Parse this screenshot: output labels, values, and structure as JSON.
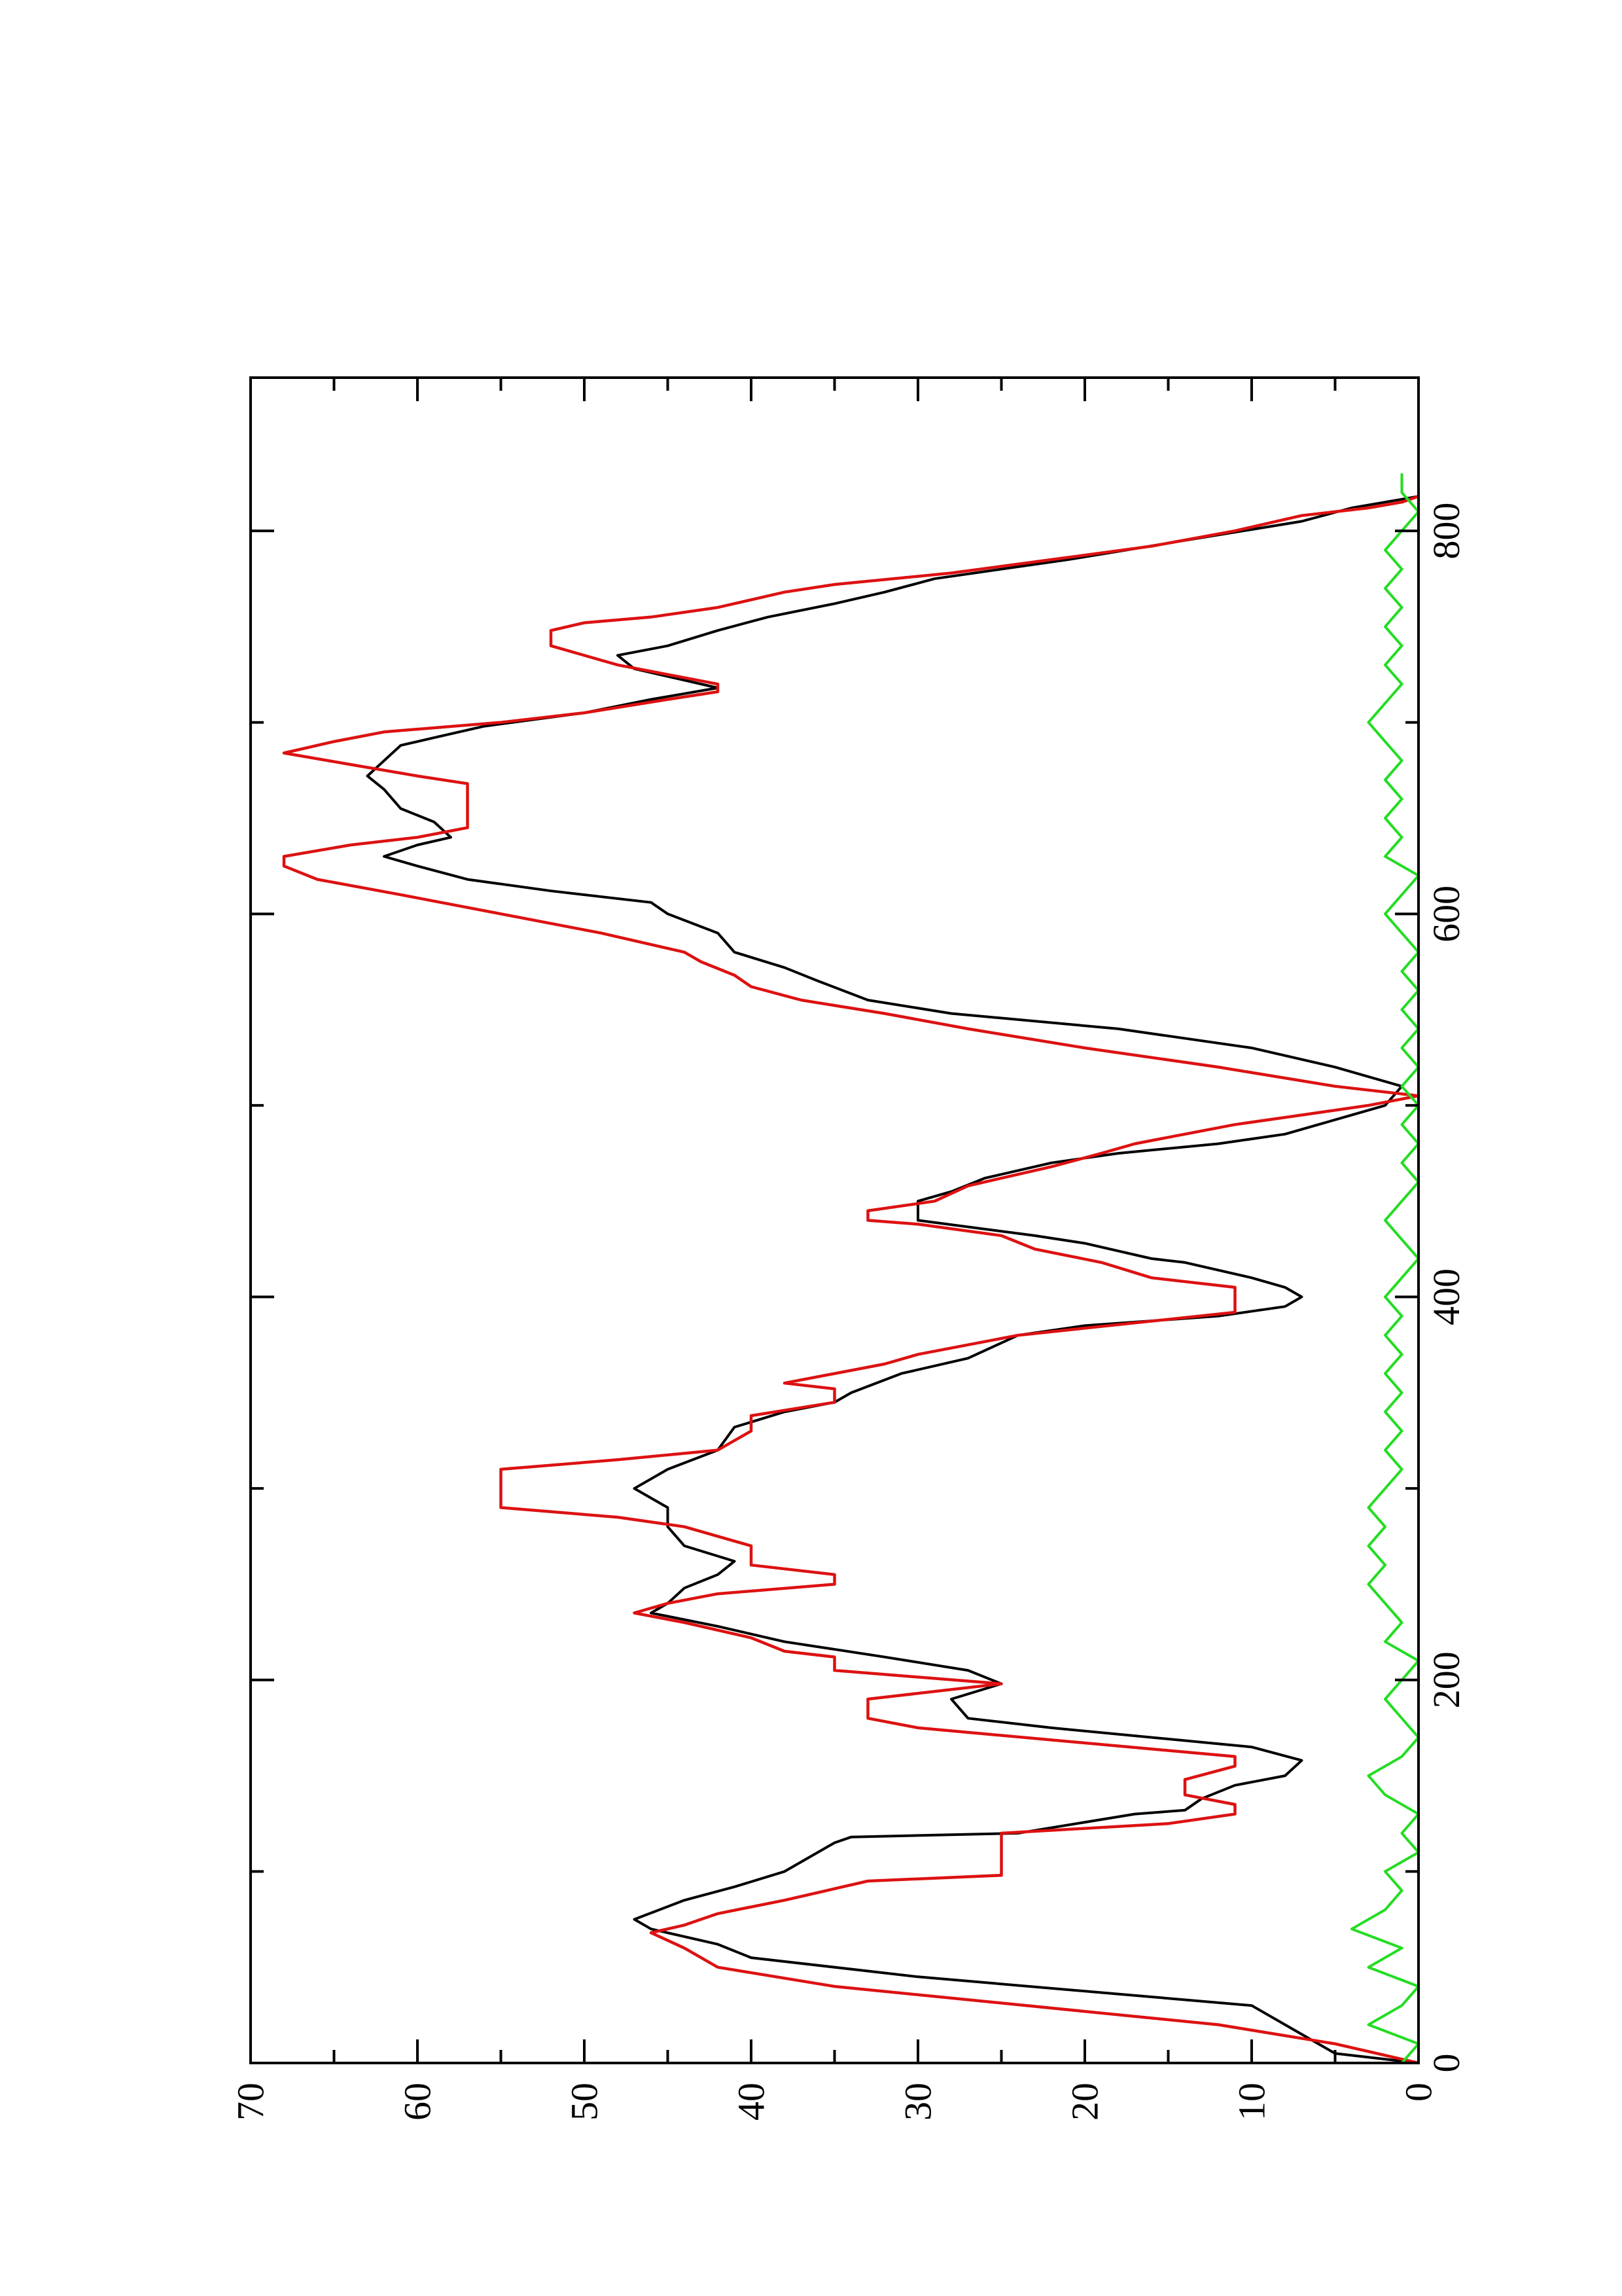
{
  "chart_data": {
    "type": "line",
    "title": "",
    "xlabel": "",
    "ylabel": "",
    "xlim": [
      0,
      880
    ],
    "ylim": [
      0,
      70
    ],
    "x_major_ticks": [
      0,
      200,
      400,
      600,
      800
    ],
    "x_minor_ticks": [
      100,
      300,
      500,
      700
    ],
    "y_major_ticks": [
      0,
      10,
      20,
      30,
      40,
      50,
      60,
      70
    ],
    "y_minor_ticks": [
      5,
      15,
      25,
      35,
      45,
      55,
      65
    ],
    "x_tick_labels": [
      "0",
      "200",
      "400",
      "600",
      "800"
    ],
    "y_tick_labels": [
      "0",
      "10",
      "20",
      "30",
      "40",
      "50",
      "60",
      "70"
    ],
    "grid": false,
    "legend": "none",
    "orientation": "rotated 90 degrees counter-clockwise (landscape plot on portrait page)",
    "series": [
      {
        "color": "#000000",
        "style": "smooth line",
        "points": [
          [
            0,
            0
          ],
          [
            5,
            5
          ],
          [
            15,
            7
          ],
          [
            30,
            10
          ],
          [
            45,
            30
          ],
          [
            55,
            40
          ],
          [
            62,
            42
          ],
          [
            70,
            46
          ],
          [
            75,
            47
          ],
          [
            85,
            44
          ],
          [
            92,
            41
          ],
          [
            100,
            38
          ],
          [
            115,
            35
          ],
          [
            118,
            34
          ],
          [
            120,
            24
          ],
          [
            130,
            17
          ],
          [
            132,
            14
          ],
          [
            138,
            13
          ],
          [
            145,
            11
          ],
          [
            150,
            8
          ],
          [
            158,
            7
          ],
          [
            165,
            10
          ],
          [
            175,
            22
          ],
          [
            180,
            27
          ],
          [
            190,
            28
          ],
          [
            198,
            25
          ],
          [
            205,
            27
          ],
          [
            212,
            32
          ],
          [
            220,
            38
          ],
          [
            228,
            42
          ],
          [
            235,
            46
          ],
          [
            240,
            45
          ],
          [
            248,
            44
          ],
          [
            255,
            42
          ],
          [
            262,
            41
          ],
          [
            270,
            44
          ],
          [
            280,
            45
          ],
          [
            290,
            45
          ],
          [
            300,
            47
          ],
          [
            310,
            45
          ],
          [
            320,
            42
          ],
          [
            332,
            41
          ],
          [
            340,
            38
          ],
          [
            345,
            35
          ],
          [
            350,
            34
          ],
          [
            360,
            31
          ],
          [
            368,
            27
          ],
          [
            380,
            24
          ],
          [
            385,
            20
          ],
          [
            390,
            12
          ],
          [
            395,
            8
          ],
          [
            400,
            7
          ],
          [
            405,
            8
          ],
          [
            410,
            10
          ],
          [
            418,
            14
          ],
          [
            420,
            16
          ],
          [
            428,
            20
          ],
          [
            432,
            23
          ],
          [
            440,
            30
          ],
          [
            450,
            30
          ],
          [
            455,
            28
          ],
          [
            462,
            26
          ],
          [
            470,
            22
          ],
          [
            475,
            18
          ],
          [
            480,
            12
          ],
          [
            485,
            8
          ],
          [
            490,
            6
          ],
          [
            495,
            4
          ],
          [
            500,
            2
          ],
          [
            510,
            1
          ],
          [
            520,
            5
          ],
          [
            530,
            10
          ],
          [
            540,
            18
          ],
          [
            548,
            28
          ],
          [
            555,
            33
          ],
          [
            565,
            36
          ],
          [
            572,
            38
          ],
          [
            580,
            41
          ],
          [
            590,
            42
          ],
          [
            600,
            45
          ],
          [
            606,
            46
          ],
          [
            612,
            52
          ],
          [
            618,
            57
          ],
          [
            625,
            60
          ],
          [
            630,
            62
          ],
          [
            636,
            60
          ],
          [
            640,
            58
          ],
          [
            648,
            59
          ],
          [
            655,
            61
          ],
          [
            665,
            62
          ],
          [
            672,
            63
          ],
          [
            680,
            62
          ],
          [
            688,
            61
          ],
          [
            692,
            59
          ],
          [
            698,
            56
          ],
          [
            705,
            50
          ],
          [
            712,
            46
          ],
          [
            718,
            42
          ],
          [
            722,
            44
          ],
          [
            728,
            47
          ],
          [
            735,
            48
          ],
          [
            740,
            45
          ],
          [
            748,
            42
          ],
          [
            755,
            39
          ],
          [
            762,
            35
          ],
          [
            768,
            32
          ],
          [
            775,
            29
          ],
          [
            785,
            21
          ],
          [
            795,
            14
          ],
          [
            805,
            7
          ],
          [
            812,
            4
          ],
          [
            815,
            2
          ],
          [
            818,
            0
          ]
        ]
      },
      {
        "color": "#dd1111",
        "style": "stepped line",
        "points": [
          [
            0,
            0
          ],
          [
            10,
            5
          ],
          [
            20,
            12
          ],
          [
            40,
            35
          ],
          [
            50,
            42
          ],
          [
            60,
            44
          ],
          [
            68,
            46
          ],
          [
            72,
            44
          ],
          [
            78,
            42
          ],
          [
            85,
            38
          ],
          [
            95,
            33
          ],
          [
            98,
            25
          ],
          [
            120,
            25
          ],
          [
            125,
            15
          ],
          [
            130,
            11
          ],
          [
            135,
            11
          ],
          [
            140,
            14
          ],
          [
            148,
            14
          ],
          [
            155,
            11
          ],
          [
            160,
            11
          ],
          [
            175,
            30
          ],
          [
            180,
            33
          ],
          [
            190,
            33
          ],
          [
            198,
            25
          ],
          [
            205,
            35
          ],
          [
            212,
            35
          ],
          [
            215,
            38
          ],
          [
            222,
            40
          ],
          [
            230,
            44
          ],
          [
            235,
            47
          ],
          [
            240,
            45
          ],
          [
            245,
            42
          ],
          [
            250,
            35
          ],
          [
            255,
            35
          ],
          [
            260,
            40
          ],
          [
            270,
            40
          ],
          [
            280,
            44
          ],
          [
            285,
            48
          ],
          [
            290,
            55
          ],
          [
            310,
            55
          ],
          [
            315,
            48
          ],
          [
            320,
            42
          ],
          [
            330,
            40
          ],
          [
            338,
            40
          ],
          [
            345,
            35
          ],
          [
            352,
            35
          ],
          [
            355,
            38
          ],
          [
            365,
            32
          ],
          [
            370,
            30
          ],
          [
            380,
            24
          ],
          [
            392,
            11
          ],
          [
            405,
            11
          ],
          [
            410,
            16
          ],
          [
            418,
            19
          ],
          [
            425,
            23
          ],
          [
            432,
            25
          ],
          [
            438,
            30
          ],
          [
            440,
            33
          ],
          [
            445,
            33
          ],
          [
            450,
            29
          ],
          [
            458,
            27
          ],
          [
            462,
            25
          ],
          [
            468,
            22
          ],
          [
            475,
            19
          ],
          [
            480,
            17
          ],
          [
            485,
            14
          ],
          [
            490,
            11
          ],
          [
            495,
            7
          ],
          [
            500,
            3
          ],
          [
            505,
            0
          ],
          [
            510,
            5
          ],
          [
            520,
            12
          ],
          [
            530,
            20
          ],
          [
            540,
            27
          ],
          [
            548,
            32
          ],
          [
            555,
            37
          ],
          [
            562,
            40
          ],
          [
            568,
            41
          ],
          [
            575,
            43
          ],
          [
            580,
            44
          ],
          [
            590,
            49
          ],
          [
            595,
            52
          ],
          [
            600,
            55
          ],
          [
            605,
            58
          ],
          [
            610,
            61
          ],
          [
            618,
            66
          ],
          [
            625,
            68
          ],
          [
            630,
            68
          ],
          [
            636,
            64
          ],
          [
            640,
            60
          ],
          [
            645,
            57
          ],
          [
            650,
            57
          ],
          [
            660,
            57
          ],
          [
            668,
            57
          ],
          [
            672,
            60
          ],
          [
            678,
            64
          ],
          [
            684,
            68
          ],
          [
            690,
            65
          ],
          [
            695,
            62
          ],
          [
            700,
            55
          ],
          [
            705,
            50
          ],
          [
            712,
            45
          ],
          [
            716,
            42
          ],
          [
            720,
            42
          ],
          [
            725,
            45
          ],
          [
            730,
            48
          ],
          [
            740,
            52
          ],
          [
            748,
            52
          ],
          [
            752,
            50
          ],
          [
            755,
            46
          ],
          [
            760,
            42
          ],
          [
            768,
            38
          ],
          [
            772,
            35
          ],
          [
            778,
            28
          ],
          [
            785,
            22
          ],
          [
            792,
            16
          ],
          [
            800,
            11
          ],
          [
            808,
            7
          ],
          [
            812,
            3
          ],
          [
            815,
            1
          ],
          [
            818,
            0
          ]
        ]
      },
      {
        "color": "#22dd22",
        "style": "noisy line near zero",
        "points": [
          [
            0,
            1
          ],
          [
            10,
            0
          ],
          [
            20,
            3
          ],
          [
            30,
            1
          ],
          [
            40,
            0
          ],
          [
            50,
            3
          ],
          [
            60,
            1
          ],
          [
            70,
            4
          ],
          [
            80,
            2
          ],
          [
            90,
            1
          ],
          [
            100,
            2
          ],
          [
            110,
            0
          ],
          [
            120,
            1
          ],
          [
            130,
            0
          ],
          [
            140,
            2
          ],
          [
            150,
            3
          ],
          [
            160,
            1
          ],
          [
            170,
            0
          ],
          [
            180,
            1
          ],
          [
            190,
            2
          ],
          [
            200,
            1
          ],
          [
            210,
            0
          ],
          [
            220,
            2
          ],
          [
            230,
            1
          ],
          [
            240,
            2
          ],
          [
            250,
            3
          ],
          [
            260,
            2
          ],
          [
            270,
            3
          ],
          [
            280,
            2
          ],
          [
            290,
            3
          ],
          [
            300,
            2
          ],
          [
            310,
            1
          ],
          [
            320,
            2
          ],
          [
            330,
            1
          ],
          [
            340,
            2
          ],
          [
            350,
            1
          ],
          [
            360,
            2
          ],
          [
            370,
            1
          ],
          [
            380,
            2
          ],
          [
            390,
            1
          ],
          [
            400,
            2
          ],
          [
            410,
            1
          ],
          [
            420,
            0
          ],
          [
            430,
            1
          ],
          [
            440,
            2
          ],
          [
            450,
            1
          ],
          [
            460,
            0
          ],
          [
            470,
            1
          ],
          [
            480,
            0
          ],
          [
            490,
            1
          ],
          [
            500,
            0
          ],
          [
            510,
            1
          ],
          [
            520,
            0
          ],
          [
            530,
            1
          ],
          [
            540,
            0
          ],
          [
            550,
            1
          ],
          [
            560,
            0
          ],
          [
            570,
            1
          ],
          [
            580,
            0
          ],
          [
            590,
            1
          ],
          [
            600,
            2
          ],
          [
            610,
            1
          ],
          [
            620,
            0
          ],
          [
            630,
            2
          ],
          [
            640,
            1
          ],
          [
            650,
            2
          ],
          [
            660,
            1
          ],
          [
            670,
            2
          ],
          [
            680,
            1
          ],
          [
            690,
            2
          ],
          [
            700,
            3
          ],
          [
            710,
            2
          ],
          [
            720,
            1
          ],
          [
            730,
            2
          ],
          [
            740,
            1
          ],
          [
            750,
            2
          ],
          [
            760,
            1
          ],
          [
            770,
            2
          ],
          [
            780,
            1
          ],
          [
            790,
            2
          ],
          [
            800,
            1
          ],
          [
            810,
            0
          ],
          [
            820,
            1
          ],
          [
            830,
            1
          ]
        ]
      }
    ]
  }
}
